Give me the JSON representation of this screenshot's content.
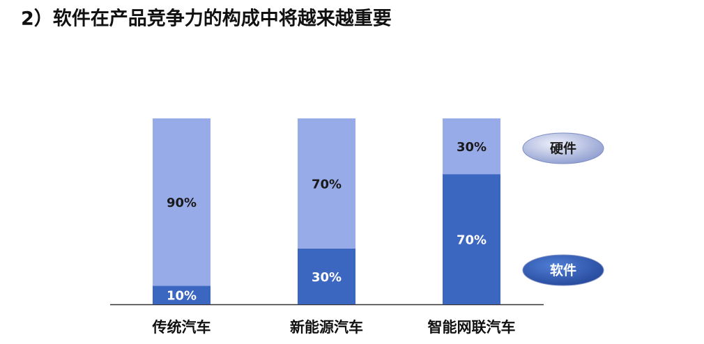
{
  "chart_data": {
    "type": "stacked-bar",
    "title": "2）软件在产品竞争力的构成中将越来越重要",
    "categories": [
      "传统汽车",
      "新能源汽车",
      "智能网联汽车"
    ],
    "series": [
      {
        "name": "软件",
        "color": "#3c67c1",
        "values": [
          10,
          30,
          70
        ],
        "value_labels": [
          "10%",
          "30%",
          "70%"
        ]
      },
      {
        "name": "硬件",
        "color": "#98abe9",
        "values": [
          90,
          70,
          30
        ],
        "value_labels": [
          "90%",
          "70%",
          "30%"
        ]
      }
    ]
  }
}
